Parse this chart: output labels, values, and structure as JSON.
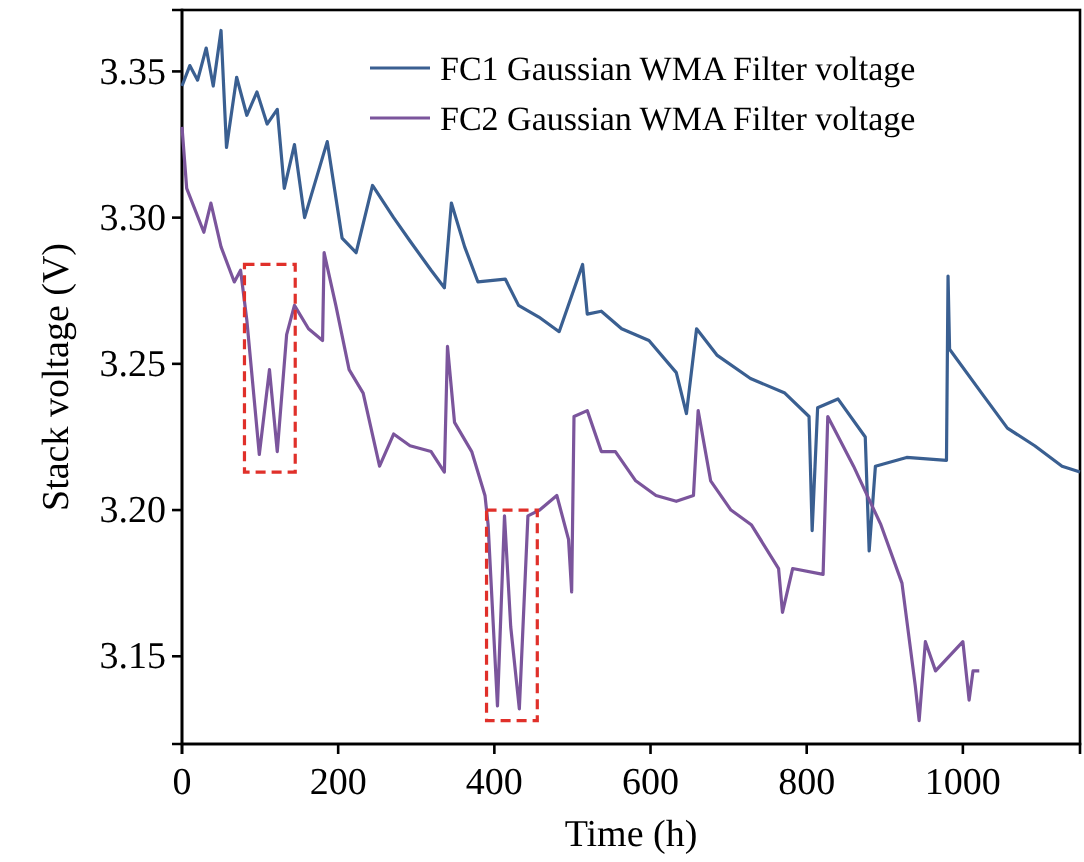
{
  "chart_data": {
    "type": "line",
    "xlabel": "Time (h)",
    "ylabel": "Stack voltage (V)",
    "xlim": [
      0,
      1150
    ],
    "xticks": [
      0,
      200,
      400,
      600,
      800,
      1000
    ],
    "ylim": [
      3.12,
      3.371
    ],
    "yticks": [
      {
        "value": 3.15,
        "label": "3.15"
      },
      {
        "value": 3.2,
        "label": "3.20"
      },
      {
        "value": 3.25,
        "label": "3.25"
      },
      {
        "value": 3.3,
        "label": "3.30"
      },
      {
        "value": 3.35,
        "label": "3.35"
      }
    ],
    "grid": false,
    "legend": "top right",
    "marker": "none",
    "line_style": "solid",
    "series": [
      {
        "name": "FC1 Gaussian WMA Filter voltage",
        "color": "#3a5f91",
        "x": [
          0,
          10,
          20,
          31,
          40,
          50,
          57,
          70,
          83,
          96,
          109,
          122,
          131,
          144,
          157,
          186,
          205,
          223,
          244,
          271,
          292,
          319,
          336,
          345,
          362,
          379,
          414,
          431,
          457,
          483,
          513,
          519,
          537,
          563,
          598,
          633,
          646,
          659,
          685,
          728,
          772,
          803,
          807,
          814,
          840,
          875,
          880,
          888,
          928,
          979,
          981,
          983,
          1024,
          1057,
          1092,
          1127,
          1150
        ],
        "values": [
          3.345,
          3.352,
          3.347,
          3.358,
          3.345,
          3.364,
          3.324,
          3.348,
          3.335,
          3.343,
          3.332,
          3.337,
          3.31,
          3.325,
          3.3,
          3.326,
          3.293,
          3.288,
          3.311,
          3.3,
          3.292,
          3.282,
          3.276,
          3.305,
          3.29,
          3.278,
          3.279,
          3.27,
          3.266,
          3.261,
          3.284,
          3.267,
          3.268,
          3.262,
          3.258,
          3.247,
          3.233,
          3.262,
          3.253,
          3.245,
          3.24,
          3.232,
          3.193,
          3.235,
          3.238,
          3.225,
          3.186,
          3.215,
          3.218,
          3.217,
          3.28,
          3.255,
          3.24,
          3.228,
          3.222,
          3.215,
          3.213
        ]
      },
      {
        "name": "FC2 Gaussian WMA Filter voltage",
        "color": "#7b559c",
        "x": [
          0,
          6,
          28,
          37,
          50,
          67,
          75,
          83,
          99,
          112,
          122,
          134,
          144,
          162,
          180,
          182,
          197,
          214,
          232,
          253,
          271,
          292,
          319,
          336,
          340,
          349,
          371,
          388,
          392,
          404,
          413,
          421,
          432,
          443,
          458,
          480,
          495,
          499,
          502,
          519,
          537,
          555,
          581,
          607,
          633,
          655,
          661,
          677,
          703,
          729,
          764,
          769,
          782,
          821,
          827,
          860,
          895,
          922,
          939,
          944,
          952,
          965,
          1000,
          1008,
          1013,
          1021
        ],
        "values": [
          3.331,
          3.31,
          3.295,
          3.305,
          3.29,
          3.278,
          3.282,
          3.265,
          3.219,
          3.248,
          3.22,
          3.26,
          3.27,
          3.262,
          3.258,
          3.288,
          3.27,
          3.248,
          3.24,
          3.215,
          3.226,
          3.222,
          3.22,
          3.213,
          3.256,
          3.23,
          3.22,
          3.205,
          3.195,
          3.133,
          3.198,
          3.16,
          3.132,
          3.198,
          3.2,
          3.205,
          3.19,
          3.172,
          3.232,
          3.234,
          3.22,
          3.22,
          3.21,
          3.205,
          3.203,
          3.205,
          3.234,
          3.21,
          3.2,
          3.195,
          3.18,
          3.165,
          3.18,
          3.178,
          3.232,
          3.215,
          3.195,
          3.175,
          3.14,
          3.128,
          3.155,
          3.145,
          3.155,
          3.135,
          3.145,
          3.145
        ]
      }
    ]
  }
}
